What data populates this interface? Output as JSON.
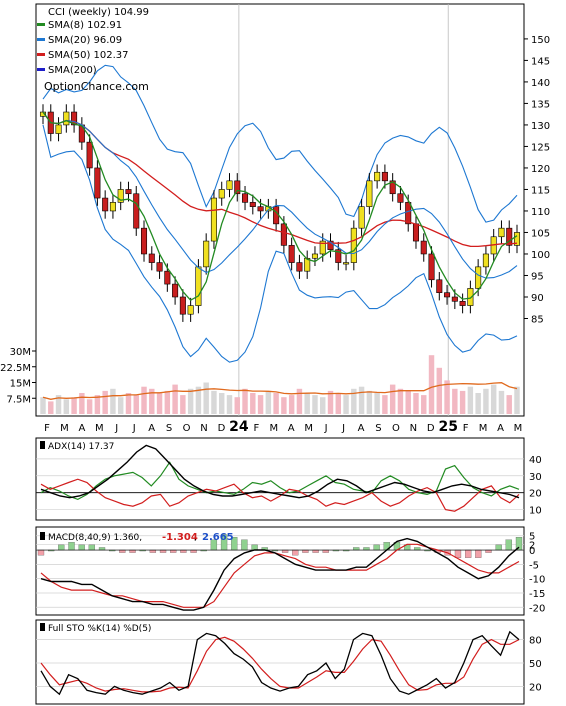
{
  "chart_data": {
    "type": "stock-candlestick",
    "title": "CCI (weekly) 104.99",
    "watermark": "OptionChance.com",
    "legend": [
      {
        "label": "SMA(8) 102.91",
        "color": "#228b22"
      },
      {
        "label": "SMA(20) 96.09",
        "color": "#1e78d2"
      },
      {
        "label": "SMA(50) 102.37",
        "color": "#d21e1e"
      },
      {
        "label": "SMA(200)",
        "color": "#1e1ec8"
      }
    ],
    "x_labels": [
      "F",
      "M",
      "A",
      "M",
      "J",
      "J",
      "A",
      "S",
      "O",
      "N",
      "D",
      "24",
      "F",
      "M",
      "A",
      "M",
      "J",
      "J",
      "A",
      "S",
      "O",
      "N",
      "D",
      "25",
      "F",
      "M",
      "A",
      "M"
    ],
    "price_axis": {
      "ticks": [
        85,
        90,
        95,
        100,
        105,
        110,
        115,
        120,
        125,
        130,
        135,
        140,
        145,
        150
      ],
      "range": [
        80,
        153
      ]
    },
    "volume_axis": {
      "ticks": [
        "7.5M",
        "15M",
        "22.5M",
        "30M"
      ]
    },
    "closes": [
      133,
      128,
      130,
      133,
      130,
      126,
      120,
      113,
      110,
      112,
      115,
      114,
      106,
      100,
      98,
      96,
      93,
      90,
      86,
      88,
      97,
      103,
      113,
      115,
      117,
      114,
      112,
      111,
      110,
      111,
      107,
      102,
      98,
      96,
      99,
      100,
      103,
      101,
      98,
      98,
      106,
      111,
      117,
      119,
      117,
      114,
      112,
      107,
      103,
      100,
      94,
      91,
      90,
      89,
      88,
      92,
      97,
      100,
      104,
      106,
      102,
      105
    ],
    "volume": [
      8,
      6,
      9,
      7,
      8,
      10,
      7,
      9,
      11,
      12,
      8,
      10,
      9,
      13,
      12,
      10,
      11,
      14,
      9,
      12,
      13,
      15,
      11,
      10,
      9,
      8,
      12,
      10,
      9,
      11,
      10,
      8,
      9,
      12,
      10,
      9,
      8,
      11,
      10,
      9,
      12,
      13,
      11,
      10,
      9,
      14,
      12,
      11,
      10,
      9,
      28,
      22,
      16,
      12,
      11,
      13,
      10,
      12,
      14,
      11,
      9,
      13
    ],
    "adx": {
      "label": "ADX(14) 17.37",
      "ticks": [
        10,
        20,
        30,
        40
      ],
      "adx": [
        22,
        20,
        18,
        17,
        18,
        20,
        24,
        28,
        33,
        38,
        44,
        48,
        46,
        40,
        34,
        28,
        24,
        21,
        19,
        18,
        18,
        19,
        20,
        21,
        20,
        19,
        18,
        17,
        18,
        21,
        25,
        28,
        27,
        24,
        20,
        22,
        24,
        26,
        25,
        23,
        21,
        20,
        22,
        24,
        25,
        24,
        22,
        21,
        20,
        19,
        17
      ],
      "plus_di": [
        20,
        23,
        21,
        18,
        16,
        19,
        24,
        28,
        30,
        31,
        32,
        29,
        24,
        30,
        38,
        28,
        24,
        22,
        20,
        21,
        20,
        19,
        22,
        26,
        25,
        27,
        23,
        20,
        21,
        24,
        27,
        30,
        26,
        25,
        22,
        21,
        20,
        27,
        30,
        27,
        22,
        20,
        19,
        21,
        34,
        36,
        29,
        23,
        20,
        18,
        22,
        24,
        22
      ],
      "minus_di": [
        25,
        22,
        24,
        26,
        28,
        26,
        21,
        17,
        15,
        13,
        12,
        14,
        18,
        19,
        12,
        14,
        18,
        20,
        22,
        21,
        23,
        25,
        20,
        17,
        18,
        15,
        18,
        22,
        21,
        18,
        16,
        12,
        14,
        13,
        15,
        17,
        20,
        15,
        12,
        14,
        18,
        21,
        23,
        20,
        10,
        9,
        12,
        17,
        22,
        24,
        17,
        14,
        19
      ]
    },
    "macd": {
      "label": "MACD(8,40,9) 1.360, -1.304, 2.665",
      "values": {
        "macd": "1.360",
        "signal": "-1.304",
        "histogram": "2.665"
      },
      "ticks": [
        -20,
        -15,
        -10,
        -5,
        0,
        2,
        5
      ],
      "macd": [
        -10,
        -11,
        -11,
        -11,
        -12,
        -12,
        -14,
        -16,
        -17,
        -18,
        -18,
        -19,
        -19,
        -20,
        -21,
        -21,
        -20,
        -14,
        -7,
        -3,
        -1,
        0,
        0,
        -1,
        -3,
        -5,
        -6,
        -7,
        -7,
        -7,
        -7,
        -6,
        -6,
        -3,
        0,
        3,
        4,
        3,
        1,
        -1,
        -3,
        -6,
        -8,
        -10,
        -9,
        -6,
        -2,
        1
      ],
      "signal": [
        -8,
        -11,
        -13,
        -14,
        -14,
        -14,
        -15,
        -16,
        -16,
        -17,
        -18,
        -18,
        -18,
        -19,
        -20,
        -20,
        -20,
        -18,
        -13,
        -8,
        -5,
        -2,
        -1,
        -1,
        -2,
        -3,
        -5,
        -6,
        -6,
        -7,
        -7,
        -7,
        -7,
        -5,
        -3,
        0,
        2,
        2,
        1,
        0,
        -1,
        -3,
        -5,
        -7,
        -8,
        -8,
        -6,
        -4
      ]
    },
    "stoch": {
      "label": "Full STO %K(14) %D(5)",
      "ticks": [
        20,
        50,
        80
      ],
      "k": [
        40,
        20,
        10,
        35,
        30,
        15,
        12,
        10,
        20,
        15,
        12,
        10,
        14,
        18,
        25,
        15,
        20,
        80,
        88,
        85,
        75,
        62,
        55,
        45,
        25,
        18,
        14,
        18,
        20,
        35,
        40,
        50,
        30,
        42,
        80,
        88,
        85,
        60,
        30,
        14,
        10,
        16,
        22,
        30,
        18,
        25,
        50,
        80,
        85,
        72,
        60,
        90,
        80
      ],
      "d": [
        50,
        35,
        22,
        25,
        28,
        24,
        18,
        14,
        16,
        17,
        15,
        13,
        13,
        14,
        18,
        19,
        18,
        40,
        65,
        80,
        83,
        78,
        68,
        56,
        42,
        30,
        20,
        18,
        18,
        25,
        32,
        40,
        38,
        38,
        52,
        68,
        80,
        78,
        60,
        40,
        22,
        15,
        16,
        22,
        24,
        24,
        32,
        55,
        74,
        80,
        74,
        74,
        80
      ]
    }
  }
}
